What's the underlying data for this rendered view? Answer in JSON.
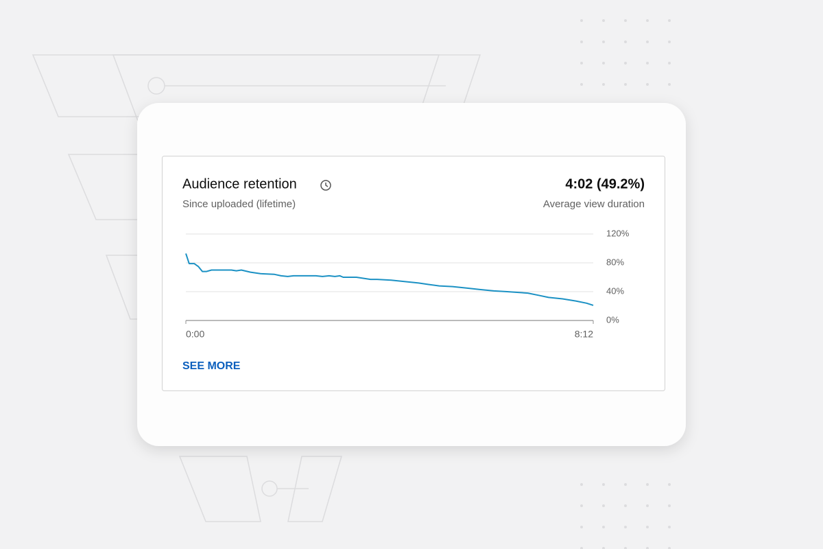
{
  "card": {
    "title": "Audience retention",
    "subtitle": "Since uploaded (lifetime)",
    "metric": "4:02 (49.2%)",
    "metric_label": "Average view duration",
    "link": "SEE MORE"
  },
  "chart_data": {
    "type": "line",
    "x": [
      0,
      4,
      10,
      15,
      20,
      25,
      31,
      49,
      55,
      61,
      67,
      78,
      90,
      107,
      115,
      123,
      130,
      157,
      165,
      173,
      180,
      186,
      190,
      206,
      223,
      231,
      248,
      264,
      281,
      293,
      306,
      322,
      339,
      355,
      372,
      388,
      413,
      426,
      438,
      455,
      471,
      484,
      492
    ],
    "values": [
      93,
      79,
      79,
      75,
      68,
      68,
      70,
      70,
      70,
      69,
      70,
      67,
      65,
      64,
      62,
      61,
      62,
      62,
      61,
      62,
      61,
      62,
      60,
      60,
      57,
      57,
      56,
      54,
      52,
      50,
      48,
      47,
      45,
      43,
      41,
      40,
      38,
      35,
      32,
      30,
      27,
      24,
      21
    ],
    "color": "#1b91c4",
    "xlim": [
      0,
      492
    ],
    "xticks": [
      {
        "value": 0,
        "label": "0:00"
      },
      {
        "value": 492,
        "label": "8:12"
      }
    ],
    "ylim": [
      0,
      120
    ],
    "yticks": [
      {
        "value": 0,
        "label": "0%"
      },
      {
        "value": 40,
        "label": "40%"
      },
      {
        "value": 80,
        "label": "80%"
      },
      {
        "value": 120,
        "label": "120%"
      }
    ],
    "grid": true
  }
}
